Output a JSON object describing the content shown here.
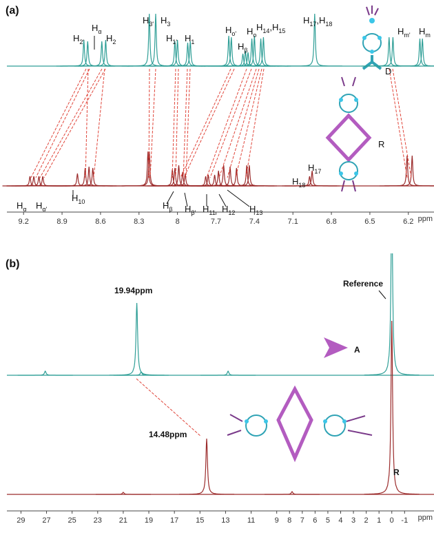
{
  "chart_data": [
    {
      "type": "spectrum",
      "title": "(a)",
      "x_label": "ppm",
      "xlim": [
        9.33,
        6.0
      ],
      "xticks": [
        9.2,
        8.9,
        8.6,
        8.3,
        8.0,
        7.7,
        7.4,
        7.1,
        6.8,
        6.5,
        6.2
      ],
      "ylim": [
        0,
        260
      ],
      "series": [
        {
          "color": "#2e9e96",
          "x": [
            8.73,
            8.7,
            8.59,
            8.56,
            8.22,
            8.17,
            8.02,
            8.0,
            7.92,
            7.9,
            7.6,
            7.58,
            7.49,
            7.47,
            7.45,
            7.42,
            7.4,
            7.35,
            7.33,
            6.93,
            6.35,
            6.32,
            6.11,
            6.09
          ],
          "values": [
            38,
            36,
            36,
            38,
            76,
            76,
            36,
            38,
            34,
            36,
            44,
            42,
            18,
            22,
            20,
            40,
            44,
            40,
            42,
            76,
            42,
            42,
            40,
            40
          ]
        },
        {
          "color": "#9b2b2b",
          "x": [
            9.15,
            9.12,
            9.08,
            9.05,
            8.78,
            8.72,
            8.69,
            8.66,
            8.23,
            8.22,
            8.04,
            8.02,
            7.99,
            7.96,
            7.94,
            7.78,
            7.76,
            7.71,
            7.68,
            7.64,
            7.59,
            7.54,
            7.46,
            7.44,
            6.97,
            6.95,
            6.21,
            6.17
          ],
          "values": [
            14,
            14,
            14,
            14,
            18,
            26,
            28,
            26,
            50,
            50,
            24,
            26,
            30,
            20,
            18,
            14,
            16,
            16,
            22,
            30,
            28,
            26,
            30,
            30,
            14,
            22,
            44,
            44
          ]
        }
      ],
      "annotations": [
        {
          "text": [
            "H",
            "2'"
          ]
        },
        {
          "text": [
            "H",
            "α"
          ]
        },
        {
          "text": [
            "H",
            "2"
          ]
        },
        {
          "text": [
            "H",
            "3'"
          ]
        },
        {
          "text": [
            "H",
            "3"
          ]
        },
        {
          "text": [
            "H",
            "1'"
          ]
        },
        {
          "text": [
            "H",
            "1"
          ]
        },
        {
          "text": [
            "H",
            "o'"
          ]
        },
        {
          "text": [
            "H",
            "β"
          ]
        },
        {
          "text": [
            "H",
            "o"
          ]
        },
        {
          "text": [
            "H",
            "14",
            ",H",
            "15"
          ]
        },
        {
          "text": [
            "H",
            "17",
            ",H",
            "18"
          ]
        },
        {
          "text": [
            "H",
            "m'"
          ]
        },
        {
          "text": [
            "H",
            "m"
          ]
        },
        {
          "text": [
            "D"
          ]
        },
        {
          "text": [
            "H",
            "α"
          ]
        },
        {
          "text": [
            "H",
            "α'"
          ]
        },
        {
          "text": [
            "H",
            "10"
          ]
        },
        {
          "text": [
            "H",
            "β"
          ]
        },
        {
          "text": [
            "H",
            "β'"
          ]
        },
        {
          "text": [
            "H",
            "11"
          ]
        },
        {
          "text": [
            "H",
            "12"
          ]
        },
        {
          "text": [
            "H",
            "13"
          ]
        },
        {
          "text": [
            "H",
            "18"
          ]
        },
        {
          "text": [
            "H",
            "17"
          ]
        },
        {
          "text": [
            "R"
          ]
        }
      ]
    },
    {
      "type": "spectrum",
      "title": "(b)",
      "x_label": "ppm",
      "xlim": [
        30.1,
        -3.3
      ],
      "xticks": [
        29,
        27,
        25,
        23,
        21,
        19,
        17,
        15,
        13,
        11,
        9,
        8,
        7,
        6,
        5,
        4,
        3,
        2,
        1,
        0,
        -1
      ],
      "ylim": [
        0,
        260
      ],
      "series": [
        {
          "color": "#2e9e96",
          "x": [
            27.1,
            19.94,
            19.6,
            12.8,
            0
          ],
          "values": [
            6,
            105,
            5,
            6,
            260
          ]
        },
        {
          "color": "#9b2b2b",
          "x": [
            21,
            14.48,
            7.8,
            0
          ],
          "values": [
            3,
            81,
            4,
            252
          ]
        }
      ],
      "annotations": [
        {
          "text": [
            "19.94ppm"
          ]
        },
        {
          "text": [
            "Reference"
          ]
        },
        {
          "text": [
            "A"
          ]
        },
        {
          "text": [
            "14.48ppm"
          ]
        },
        {
          "text": [
            "R"
          ]
        }
      ]
    }
  ]
}
